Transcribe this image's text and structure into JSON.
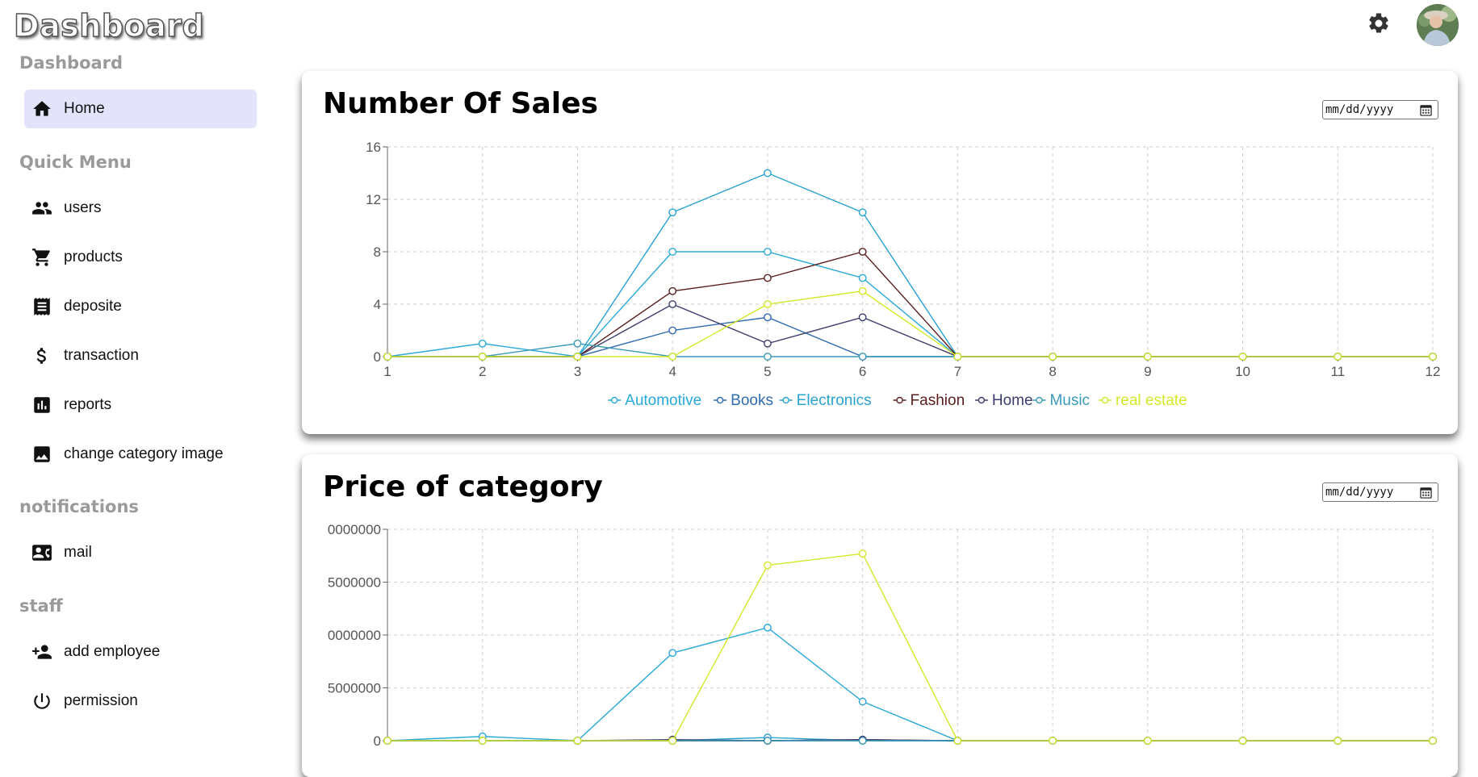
{
  "header": {
    "brand": "Dashboard",
    "settings_icon": "gear-icon",
    "avatar_icon": "user-avatar"
  },
  "sidebar": {
    "sections": [
      {
        "title": "Dashboard"
      },
      {
        "title": "Quick Menu"
      },
      {
        "title": "notifications"
      },
      {
        "title": "staff"
      }
    ],
    "items": [
      {
        "label": "Home",
        "icon": "home-icon",
        "active": true
      },
      {
        "label": "users",
        "icon": "people-icon"
      },
      {
        "label": "products",
        "icon": "cart-icon"
      },
      {
        "label": "deposite",
        "icon": "receipt-icon"
      },
      {
        "label": "transaction",
        "icon": "dollar-icon"
      },
      {
        "label": "reports",
        "icon": "bar-chart-icon"
      },
      {
        "label": "change category image",
        "icon": "image-icon"
      },
      {
        "label": "mail",
        "icon": "contact-mail-icon"
      },
      {
        "label": "add employee",
        "icon": "person-add-icon"
      },
      {
        "label": "permission",
        "icon": "power-icon"
      }
    ]
  },
  "cards": [
    {
      "title": "Number Of Sales",
      "date_placeholder": "mm/dd/yyyy"
    },
    {
      "title": "Price of category",
      "date_placeholder": "mm/dd/yyyy"
    }
  ],
  "colors": {
    "Automotive": "#29a9d8",
    "Books": "#2e6bb0",
    "Electronics": "#2aa3d0",
    "Fashion": "#5a1e1e",
    "Home": "#3d3d6e",
    "Music": "#3a9ab8",
    "real estate": "#d4e82a",
    "active_nav_bg": "#e3e4fb"
  },
  "chart_data": [
    {
      "type": "line",
      "title": "Number Of Sales",
      "categories": [
        "1",
        "2",
        "3",
        "4",
        "5",
        "6",
        "7",
        "8",
        "9",
        "10",
        "11",
        "12"
      ],
      "ylim": [
        0,
        16
      ],
      "yticks": [
        "0",
        "4",
        "8",
        "12",
        "16"
      ],
      "grid": true,
      "legend": "bottom",
      "series": [
        {
          "name": "Automotive",
          "values": [
            0,
            1,
            0,
            8,
            8,
            6,
            0,
            0,
            0,
            0,
            0,
            0
          ]
        },
        {
          "name": "Books",
          "values": [
            0,
            0,
            0,
            2,
            3,
            0,
            0,
            0,
            0,
            0,
            0,
            0
          ]
        },
        {
          "name": "Electronics",
          "values": [
            0,
            0,
            0,
            11,
            14,
            11,
            0,
            0,
            0,
            0,
            0,
            0
          ]
        },
        {
          "name": "Fashion",
          "values": [
            0,
            0,
            0,
            5,
            6,
            8,
            0,
            0,
            0,
            0,
            0,
            0
          ]
        },
        {
          "name": "Home",
          "values": [
            0,
            0,
            0,
            4,
            1,
            3,
            0,
            0,
            0,
            0,
            0,
            0
          ]
        },
        {
          "name": "Music",
          "values": [
            0,
            0,
            1,
            0,
            0,
            0,
            0,
            0,
            0,
            0,
            0,
            0
          ]
        },
        {
          "name": "real estate",
          "values": [
            0,
            0,
            0,
            0,
            4,
            5,
            0,
            0,
            0,
            0,
            0,
            0
          ]
        }
      ]
    },
    {
      "type": "line",
      "title": "Price of category",
      "categories": [
        "1",
        "2",
        "3",
        "4",
        "5",
        "6",
        "7",
        "8",
        "9",
        "10",
        "11",
        "12"
      ],
      "ylim": [
        0,
        20000000
      ],
      "yticks": [
        "0",
        "5000000",
        "10000000",
        "15000000",
        "20000000"
      ],
      "ytick_labels_visible": [
        "0",
        "5000000",
        "0000000",
        "5000000",
        "0000000"
      ],
      "grid": true,
      "series": [
        {
          "name": "Automotive",
          "values": [
            0,
            400000,
            0,
            8300000,
            10700000,
            3700000,
            0,
            0,
            0,
            0,
            0,
            0
          ]
        },
        {
          "name": "Books",
          "values": [
            0,
            0,
            0,
            0,
            0,
            0,
            0,
            0,
            0,
            0,
            0,
            0
          ]
        },
        {
          "name": "Electronics",
          "values": [
            0,
            0,
            0,
            0,
            300000,
            0,
            0,
            0,
            0,
            0,
            0,
            0
          ]
        },
        {
          "name": "Fashion",
          "values": [
            0,
            0,
            0,
            0,
            0,
            100000,
            0,
            0,
            0,
            0,
            0,
            0
          ]
        },
        {
          "name": "Home",
          "values": [
            0,
            0,
            0,
            100000,
            0,
            100000,
            0,
            0,
            0,
            0,
            0,
            0
          ]
        },
        {
          "name": "Music",
          "values": [
            0,
            0,
            0,
            0,
            0,
            0,
            0,
            0,
            0,
            0,
            0,
            0
          ]
        },
        {
          "name": "real estate",
          "values": [
            0,
            0,
            0,
            0,
            16600000,
            17700000,
            0,
            0,
            0,
            0,
            0,
            0
          ]
        }
      ]
    }
  ]
}
